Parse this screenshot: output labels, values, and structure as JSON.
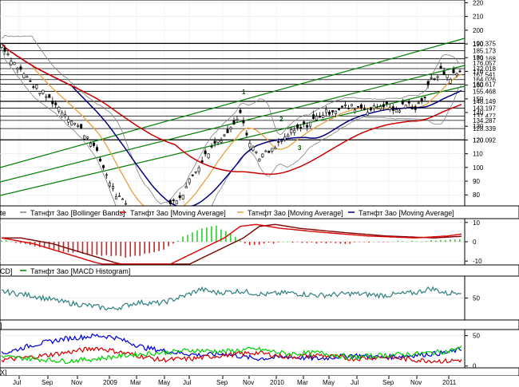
{
  "chart_data": [
    {
      "type": "candlestick",
      "panel": "price",
      "ylim": [
        72,
        222
      ],
      "y_ticks": [
        80,
        90,
        100,
        110,
        120,
        130,
        140,
        150,
        160,
        170,
        180,
        190,
        200,
        210,
        220
      ],
      "level_lines": [
        {
          "label": "190.375",
          "value": 190.375
        },
        {
          "label": "185.173",
          "value": 185.173
        },
        {
          "label": "179.168",
          "value": 179.168
        },
        {
          "label": "176.057",
          "value": 176.057
        },
        {
          "label": "172.018",
          "value": 172.018
        },
        {
          "label": "167.541",
          "value": 167.541
        },
        {
          "label": "164.026",
          "value": 164.026
        },
        {
          "label": "160.617",
          "value": 160.617
        },
        {
          "label": "155.468",
          "value": 155.468
        },
        {
          "label": "148.149",
          "value": 148.149
        },
        {
          "label": "143.197",
          "value": 143.197
        },
        {
          "label": "137.477",
          "value": 137.477
        },
        {
          "label": "134.287",
          "value": 134.287
        },
        {
          "label": "128.339",
          "value": 128.339
        },
        {
          "label": "120.092",
          "value": 120.092
        }
      ],
      "annotations": [
        "1",
        "2",
        "3"
      ],
      "legend": [
        {
          "name": "Татнфт 3ао [Bollinger Bands]",
          "color": "#808080"
        },
        {
          "name": "Татнфт 3ао [Moving Average]",
          "color": "#cc0000"
        },
        {
          "name": "Татнфт 3ао [Moving Average]",
          "color": "#e8a040"
        },
        {
          "name": "Татнфт 3ао [Moving Average]",
          "color": "#000080"
        }
      ],
      "legend_prefix": "te"
    },
    {
      "type": "macd",
      "panel": "macd",
      "ylim": [
        -12,
        12
      ],
      "y_ticks": [
        -10,
        0,
        10
      ],
      "legend": [
        {
          "name": "Татнфт 3ао [MACD Histogram]",
          "color": "#008000"
        }
      ],
      "legend_prefix": "CD]"
    },
    {
      "type": "line",
      "panel": "rsi",
      "ylim": [
        0,
        100
      ],
      "y_ticks": [
        50
      ],
      "legend_prefix": "]"
    },
    {
      "type": "line",
      "panel": "dmi",
      "ylim": [
        -3,
        60
      ],
      "y_ticks": [
        0,
        50
      ],
      "legend_prefix": "X]"
    }
  ],
  "x_axis": [
    "Jul",
    "Sep",
    "Nov",
    "2009",
    "Mar",
    "May",
    "Jul",
    "Sep",
    "Nov",
    "2010",
    "Mar",
    "May",
    "Jul",
    "Sep",
    "Nov",
    "2011"
  ],
  "colors": {
    "up": "#000000",
    "bollinger": "#808080",
    "ma_red": "#cc0000",
    "ma_orange": "#e8a040",
    "ma_navy": "#000080",
    "channel": "#008000",
    "rsi": "#2e7f7f",
    "dmi_blue": "#0000cc",
    "dmi_red": "#cc0000",
    "dmi_green": "#00cc00"
  }
}
